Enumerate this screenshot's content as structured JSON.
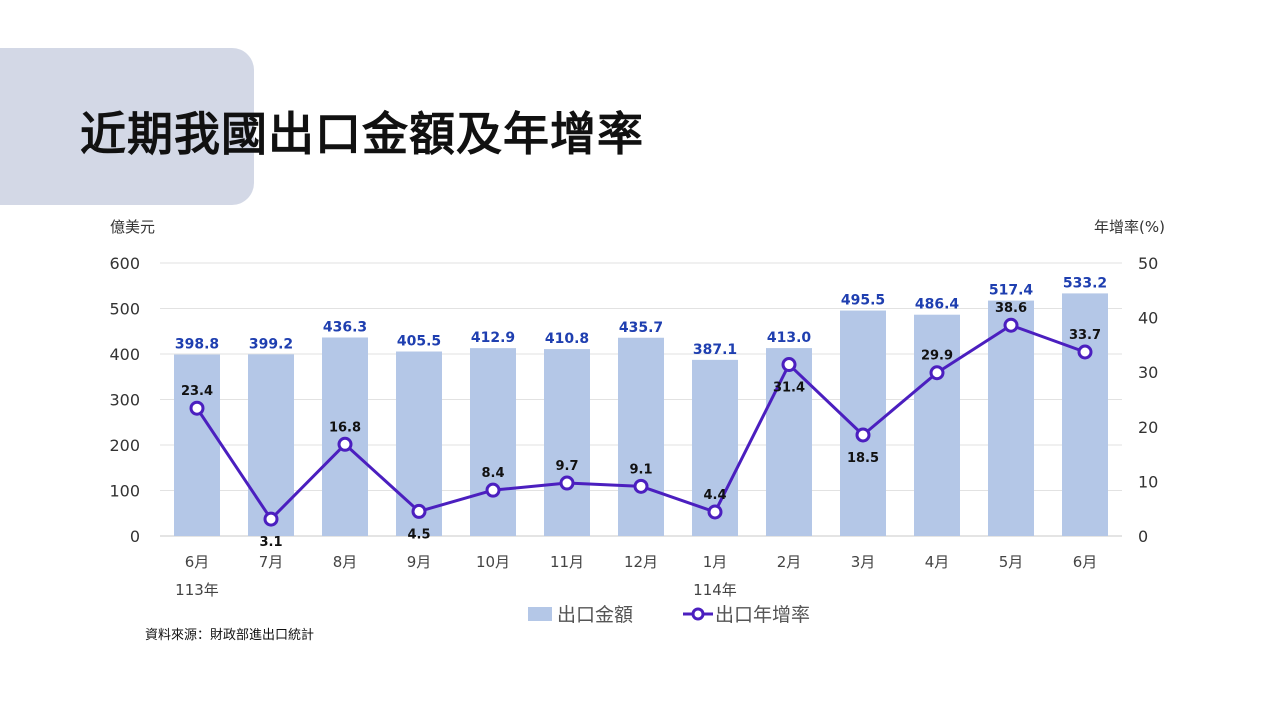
{
  "page": {
    "title": "近期我國出口金額及年增率",
    "source": "資料來源：財政部進出口統計"
  },
  "chart_data": {
    "type": "bar",
    "categories": [
      "6月",
      "7月",
      "8月",
      "9月",
      "10月",
      "11月",
      "12月",
      "1月",
      "2月",
      "3月",
      "4月",
      "5月",
      "6月"
    ],
    "year_labels": [
      {
        "index": 0,
        "label": "113年"
      },
      {
        "index": 7,
        "label": "114年"
      }
    ],
    "ylabel_left": "億美元",
    "ylabel_right": "年增率(%)",
    "ylim_left": [
      0,
      600
    ],
    "yticks_left": [
      0,
      100,
      200,
      300,
      400,
      500,
      600
    ],
    "ylim_right": [
      0,
      50
    ],
    "yticks_right": [
      0,
      10,
      20,
      30,
      40,
      50
    ],
    "grid": true,
    "legend_position": "bottom",
    "series": [
      {
        "name": "出口金額",
        "kind": "bar",
        "axis": "left",
        "color": "#b4c7e7",
        "label_color": "#1f3fb0",
        "values": [
          398.8,
          399.2,
          436.3,
          405.5,
          412.9,
          410.8,
          435.7,
          387.1,
          413.0,
          495.5,
          486.4,
          517.4,
          533.2
        ],
        "labels": [
          "398.8",
          "399.2",
          "436.3",
          "405.5",
          "412.9",
          "410.8",
          "435.7",
          "387.1",
          "413.0",
          "495.5",
          "486.4",
          "517.4",
          "533.2"
        ]
      },
      {
        "name": "出口年增率",
        "kind": "line",
        "axis": "right",
        "color": "#4b1fbf",
        "values": [
          23.4,
          3.1,
          16.8,
          4.5,
          8.4,
          9.7,
          9.1,
          4.4,
          31.4,
          18.5,
          29.9,
          38.6,
          33.7
        ],
        "labels": [
          "23.4",
          "3.1",
          "16.8",
          "4.5",
          "8.4",
          "9.7",
          "9.1",
          "4.4",
          "31.4",
          "18.5",
          "29.9",
          "38.6",
          "33.7"
        ]
      }
    ]
  }
}
